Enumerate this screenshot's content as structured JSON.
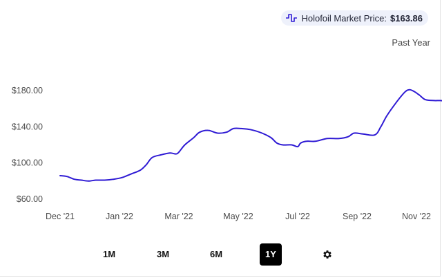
{
  "header": {
    "market_label": "Holofoil Market Price:",
    "market_price": "$163.86",
    "range_label": "Past Year",
    "pulse_icon": "pulse-icon"
  },
  "controls": {
    "buttons": [
      {
        "label": "1M",
        "active": false
      },
      {
        "label": "3M",
        "active": false
      },
      {
        "label": "6M",
        "active": false
      },
      {
        "label": "1Y",
        "active": true
      }
    ],
    "settings_icon": "gear-icon"
  },
  "colors": {
    "line": "#2e1ad4",
    "accent_pill": "#eef1fb"
  },
  "chart_data": {
    "type": "line",
    "title": "",
    "xlabel": "",
    "ylabel": "",
    "ylim": [
      55,
      200
    ],
    "xlim": [
      -0.3,
      11.9
    ],
    "grid": false,
    "yticks": [
      {
        "value": 180,
        "label": "$180.00"
      },
      {
        "value": 140,
        "label": "$140.00"
      },
      {
        "value": 100,
        "label": "$100.00"
      },
      {
        "value": 60,
        "label": "$60.00"
      }
    ],
    "xticks": [
      {
        "value": 0,
        "label": "Dec '21"
      },
      {
        "value": 1,
        "label": "Jan '22"
      },
      {
        "value": 2,
        "label": "Mar '22"
      },
      {
        "value": 3,
        "label": "May '22"
      },
      {
        "value": 4,
        "label": "Jul '22"
      },
      {
        "value": 5,
        "label": "Sep '22"
      },
      {
        "value": 6,
        "label": "Nov '22"
      }
    ],
    "series": [
      {
        "values": [
          [
            0.0,
            86
          ],
          [
            0.12,
            85
          ],
          [
            0.24,
            82
          ],
          [
            0.36,
            81
          ],
          [
            0.48,
            80
          ],
          [
            0.6,
            81
          ],
          [
            0.75,
            81
          ],
          [
            0.9,
            82
          ],
          [
            1.05,
            84
          ],
          [
            1.2,
            88
          ],
          [
            1.35,
            92
          ],
          [
            1.45,
            98
          ],
          [
            1.55,
            106
          ],
          [
            1.7,
            109
          ],
          [
            1.85,
            111
          ],
          [
            1.95,
            110
          ],
          [
            2.0,
            112
          ],
          [
            2.1,
            120
          ],
          [
            2.25,
            128
          ],
          [
            2.35,
            134
          ],
          [
            2.5,
            136
          ],
          [
            2.65,
            133
          ],
          [
            2.8,
            134
          ],
          [
            2.92,
            138
          ],
          [
            3.05,
            138
          ],
          [
            3.2,
            137
          ],
          [
            3.4,
            133
          ],
          [
            3.55,
            128
          ],
          [
            3.65,
            122
          ],
          [
            3.75,
            120
          ],
          [
            3.9,
            120
          ],
          [
            4.0,
            118
          ],
          [
            4.05,
            122
          ],
          [
            4.15,
            124
          ],
          [
            4.3,
            124
          ],
          [
            4.5,
            127
          ],
          [
            4.7,
            127
          ],
          [
            4.85,
            129
          ],
          [
            4.95,
            133
          ],
          [
            5.1,
            132
          ],
          [
            5.3,
            131
          ],
          [
            5.4,
            140
          ],
          [
            5.5,
            152
          ],
          [
            5.65,
            166
          ],
          [
            5.8,
            178
          ],
          [
            5.88,
            181
          ],
          [
            5.96,
            179
          ],
          [
            6.05,
            175
          ],
          [
            6.15,
            170
          ],
          [
            6.3,
            169
          ],
          [
            6.4,
            169
          ],
          [
            6.5,
            168
          ],
          [
            6.6,
            164
          ]
        ]
      }
    ]
  }
}
